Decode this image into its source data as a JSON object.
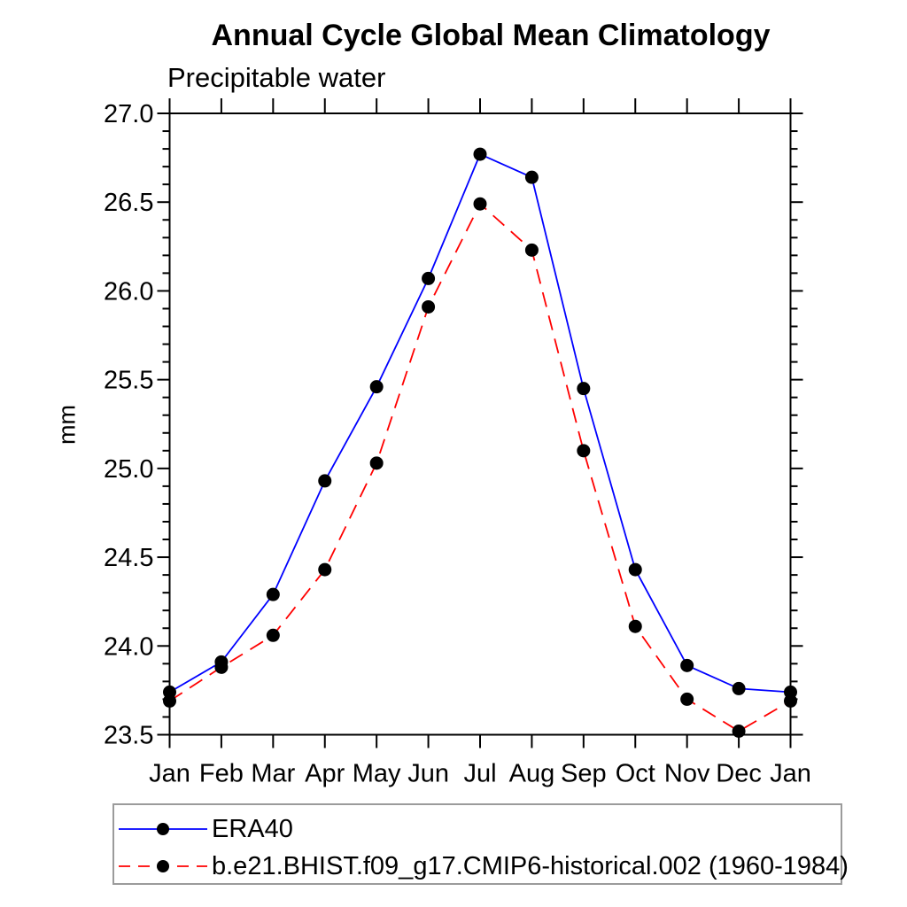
{
  "chart_data": {
    "type": "line",
    "title": "Annual Cycle Global Mean Climatology",
    "subtitle": "Precipitable water",
    "ylabel": "mm",
    "xlabel": "",
    "categories": [
      "Jan",
      "Feb",
      "Mar",
      "Apr",
      "May",
      "Jun",
      "Jul",
      "Aug",
      "Sep",
      "Oct",
      "Nov",
      "Dec",
      "Jan"
    ],
    "ylim": [
      23.5,
      27.0
    ],
    "ytick_step_major": 0.5,
    "ytick_step_minor": 0.1,
    "ytick_labels": [
      "23.5",
      "24.0",
      "24.5",
      "25.0",
      "25.5",
      "26.0",
      "26.5",
      "27.0"
    ],
    "grid": false,
    "legend_position": "bottom-left-box",
    "frame_color": "#000000",
    "legend_border_color": "#9b9b9b",
    "marker_color": "#000000",
    "series": [
      {
        "name": "ERA40",
        "color": "#0000ff",
        "line_style": "solid",
        "marker": "circle",
        "values": [
          23.74,
          23.91,
          24.29,
          24.93,
          25.46,
          26.07,
          26.77,
          26.64,
          25.45,
          24.43,
          23.89,
          23.76,
          23.74
        ]
      },
      {
        "name": "b.e21.BHIST.f09_g17.CMIP6-historical.002 (1960-1984)",
        "color": "#ff0000",
        "line_style": "dashed",
        "marker": "circle",
        "values": [
          23.69,
          23.88,
          24.06,
          24.43,
          25.03,
          25.91,
          26.49,
          26.23,
          25.1,
          24.11,
          23.7,
          23.52,
          23.69
        ]
      }
    ]
  }
}
